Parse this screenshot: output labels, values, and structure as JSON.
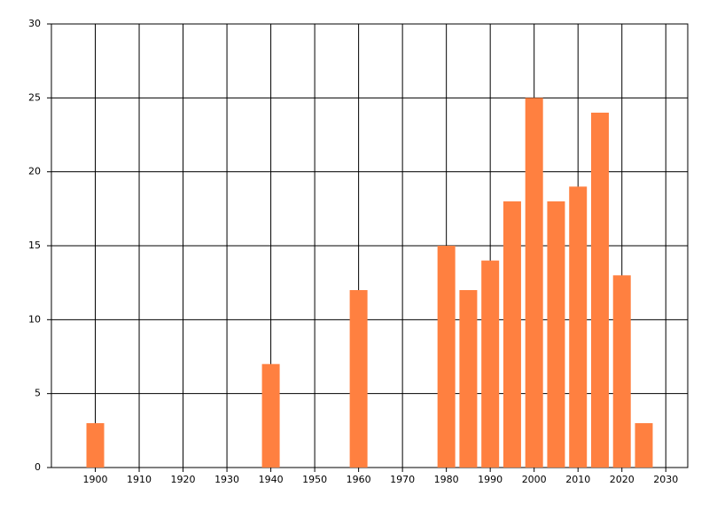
{
  "chart_data": {
    "type": "bar",
    "x": [
      1900,
      1940,
      1960,
      1980,
      1985,
      1990,
      1995,
      2000,
      2005,
      2010,
      2015,
      2020,
      2025
    ],
    "values": [
      3,
      7,
      12,
      15,
      12,
      14,
      18,
      25,
      18,
      19,
      24,
      13,
      3
    ],
    "color": "#ff8040",
    "xlim": [
      1890,
      2035
    ],
    "xticks": [
      1900,
      1910,
      1920,
      1930,
      1940,
      1950,
      1960,
      1970,
      1980,
      1990,
      2000,
      2010,
      2020,
      2030
    ],
    "ylim": [
      0,
      30
    ],
    "yticks": [
      0,
      5,
      10,
      15,
      20,
      25,
      30
    ],
    "grid": true
  }
}
